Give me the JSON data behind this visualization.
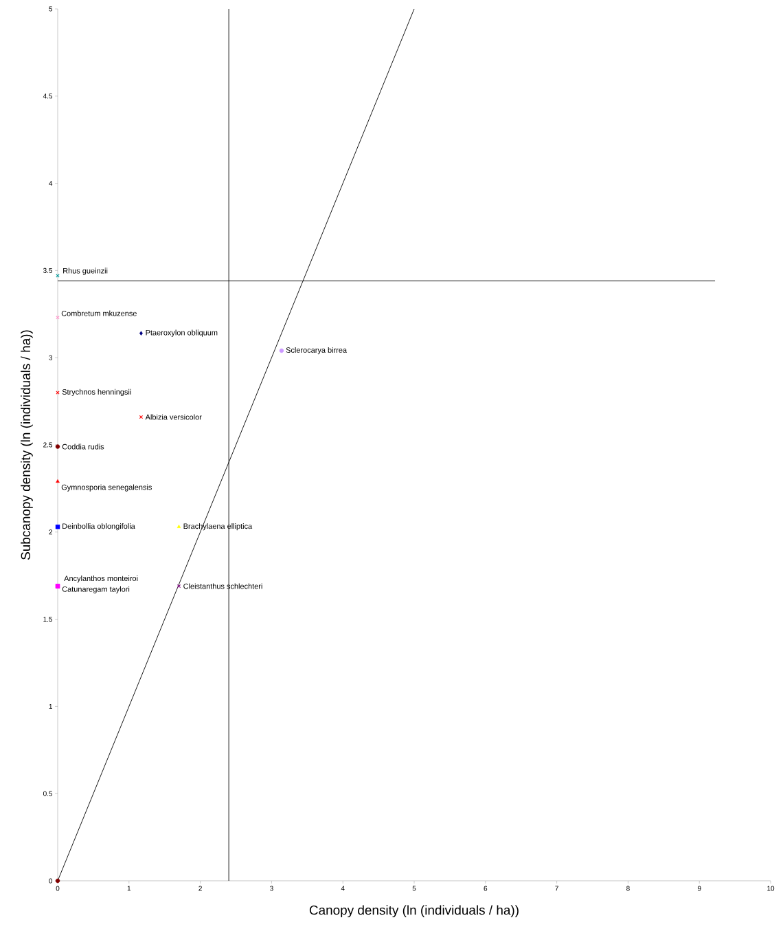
{
  "chart_data": {
    "type": "scatter",
    "xlabel": "Canopy density (ln (individuals / ha))",
    "ylabel": "Subcanopy density (ln (individuals / ha))",
    "xlim": [
      0,
      10
    ],
    "ylim": [
      0,
      5
    ],
    "xticks": [
      0,
      1,
      2,
      3,
      4,
      5,
      6,
      7,
      8,
      9,
      10
    ],
    "yticks": [
      0,
      0.5,
      1,
      1.5,
      2,
      2.5,
      3,
      3.5,
      4,
      4.5,
      5
    ],
    "grid": false,
    "series": [
      {
        "name": "Rhus gueinzii",
        "color": "#009999",
        "marker": "cross",
        "x": [
          0
        ],
        "values": [
          3.47
        ]
      },
      {
        "name": "Combretum mkuzense",
        "color": "#ff99cc",
        "marker": "cross",
        "x": [
          0
        ],
        "values": [
          3.23
        ]
      },
      {
        "name": "Ptaeroxylon obliquum",
        "color": "#000080",
        "marker": "diamond",
        "x": [
          1.17
        ],
        "values": [
          3.14
        ]
      },
      {
        "name": "Sclerocarya birrea",
        "color": "#cc99ff",
        "marker": "circle",
        "x": [
          3.14
        ],
        "values": [
          3.04
        ]
      },
      {
        "name": "Strychnos henningsii",
        "color": "#ff0000",
        "marker": "cross",
        "x": [
          0
        ],
        "values": [
          2.8
        ]
      },
      {
        "name": "Albizia versicolor",
        "color": "#ff0000",
        "marker": "cross",
        "x": [
          1.17
        ],
        "values": [
          2.66
        ]
      },
      {
        "name": "Coddia rudis",
        "color": "#800000",
        "marker": "circle",
        "x": [
          0
        ],
        "values": [
          2.49
        ]
      },
      {
        "name": "Gymnosporia senegalensis",
        "color": "#ff0000",
        "marker": "triangle",
        "x": [
          0
        ],
        "values": [
          2.29
        ]
      },
      {
        "name": "Deinbollia oblongifolia",
        "color": "#0000ff",
        "marker": "square",
        "x": [
          0
        ],
        "values": [
          2.03
        ]
      },
      {
        "name": "Brachylaena elliptica",
        "color": "#ffff00",
        "marker": "triangle",
        "x": [
          1.7
        ],
        "values": [
          2.03
        ]
      },
      {
        "name": "Ancylanthos monteiroi",
        "color": "#ff00ff",
        "marker": "square",
        "x": [
          0
        ],
        "values": [
          1.69
        ]
      },
      {
        "name": "Catunaregam taylori",
        "color": "#ff00ff",
        "marker": "square",
        "x": [
          0
        ],
        "values": [
          1.69
        ]
      },
      {
        "name": "Cleistanthus schlechteri",
        "color": "#800080",
        "marker": "cross",
        "x": [
          1.7
        ],
        "values": [
          1.69
        ]
      },
      {
        "color": "#800000",
        "marker": "circle",
        "x": [
          0
        ],
        "values": [
          0
        ]
      },
      {
        "type": "line",
        "color": "#000000",
        "marker": "none",
        "x": [
          0,
          5
        ],
        "values": [
          0,
          5
        ]
      },
      {
        "type": "line",
        "color": "#000000",
        "marker": "none",
        "x": [
          0,
          9.22
        ],
        "values": [
          3.44,
          3.44
        ]
      }
    ],
    "ref_lines": [
      {
        "axis": "x",
        "value": 2.4,
        "color": "#000000"
      }
    ]
  }
}
